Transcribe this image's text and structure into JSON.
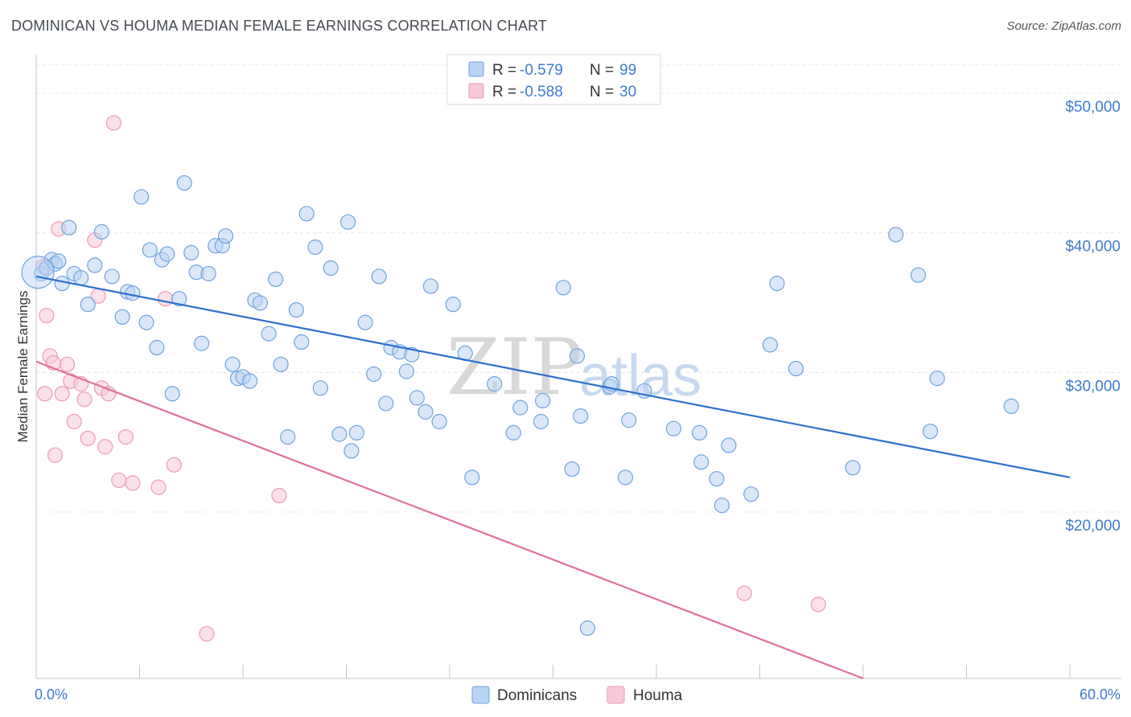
{
  "title": "DOMINICAN VS HOUMA MEDIAN FEMALE EARNINGS CORRELATION CHART",
  "source": "Source: ZipAtlas.com",
  "watermark": {
    "zip": "ZIP",
    "atlas": "atlas"
  },
  "chart_data": {
    "type": "scatter",
    "title": "DOMINICAN VS HOUMA MEDIAN FEMALE EARNINGS CORRELATION CHART",
    "xlabel": "",
    "ylabel": "Median Female Earnings",
    "xlim": [
      0,
      60
    ],
    "ylim": [
      9000,
      53000
    ],
    "x_tick_labels": {
      "min": "0.0%",
      "max": "60.0%"
    },
    "y_ticks": [
      20000,
      30000,
      40000,
      50000
    ],
    "y_tick_labels": [
      "$20,000",
      "$30,000",
      "$40,000",
      "$50,000"
    ],
    "grid": true,
    "legend_position": "top-center",
    "legend": [
      {
        "r_label": "R =",
        "r_value": "-0.579",
        "n_label": "N =",
        "n_value": "99"
      },
      {
        "r_label": "R =",
        "r_value": "-0.588",
        "n_label": "N =",
        "n_value": "30"
      }
    ],
    "series": [
      {
        "name": "Dominicans",
        "color": "#6fa3e0",
        "fill": "#b9d3f3",
        "trend": {
          "x": [
            0,
            60
          ],
          "y": [
            37800,
            23400
          ],
          "color": "#2b6fd0"
        },
        "points": [
          [
            0.3,
            38000
          ],
          [
            0.6,
            38400
          ],
          [
            0.9,
            39000
          ],
          [
            1.1,
            38700
          ],
          [
            1.5,
            37300
          ],
          [
            1.9,
            41300
          ],
          [
            2.2,
            38000
          ],
          [
            2.6,
            37700
          ],
          [
            3.0,
            35800
          ],
          [
            3.4,
            38600
          ],
          [
            3.8,
            41000
          ],
          [
            4.4,
            37800
          ],
          [
            5.0,
            34900
          ],
          [
            5.3,
            36700
          ],
          [
            5.6,
            36600
          ],
          [
            6.1,
            43500
          ],
          [
            6.4,
            34500
          ],
          [
            6.6,
            39700
          ],
          [
            7.0,
            32700
          ],
          [
            7.3,
            39000
          ],
          [
            7.6,
            39400
          ],
          [
            7.9,
            29400
          ],
          [
            8.3,
            36200
          ],
          [
            8.6,
            44500
          ],
          [
            9.0,
            39500
          ],
          [
            9.3,
            38100
          ],
          [
            9.6,
            33000
          ],
          [
            10.0,
            38000
          ],
          [
            10.4,
            40000
          ],
          [
            10.8,
            40000
          ],
          [
            11.0,
            40700
          ],
          [
            11.4,
            31500
          ],
          [
            11.7,
            30500
          ],
          [
            12.0,
            30600
          ],
          [
            12.4,
            30300
          ],
          [
            12.7,
            36100
          ],
          [
            13.0,
            35900
          ],
          [
            13.5,
            33700
          ],
          [
            13.9,
            37600
          ],
          [
            14.2,
            31500
          ],
          [
            14.6,
            26300
          ],
          [
            15.1,
            35400
          ],
          [
            15.4,
            33100
          ],
          [
            15.7,
            42300
          ],
          [
            16.2,
            39900
          ],
          [
            16.5,
            29800
          ],
          [
            17.1,
            38400
          ],
          [
            17.6,
            26500
          ],
          [
            18.1,
            41700
          ],
          [
            18.3,
            25300
          ],
          [
            18.6,
            26600
          ],
          [
            19.1,
            34500
          ],
          [
            19.6,
            30800
          ],
          [
            19.9,
            37800
          ],
          [
            20.3,
            28700
          ],
          [
            20.6,
            32700
          ],
          [
            21.1,
            32400
          ],
          [
            21.5,
            31000
          ],
          [
            21.8,
            32200
          ],
          [
            22.1,
            29100
          ],
          [
            22.6,
            28100
          ],
          [
            22.9,
            37100
          ],
          [
            23.4,
            27400
          ],
          [
            24.2,
            35800
          ],
          [
            24.9,
            32300
          ],
          [
            25.3,
            23400
          ],
          [
            26.6,
            30100
          ],
          [
            27.7,
            26600
          ],
          [
            28.1,
            28400
          ],
          [
            29.3,
            27400
          ],
          [
            29.4,
            28900
          ],
          [
            30.6,
            37000
          ],
          [
            31.1,
            24000
          ],
          [
            31.4,
            32100
          ],
          [
            31.6,
            27800
          ],
          [
            32.0,
            12600
          ],
          [
            33.3,
            29900
          ],
          [
            33.4,
            30100
          ],
          [
            34.2,
            23400
          ],
          [
            34.4,
            27500
          ],
          [
            35.3,
            29600
          ],
          [
            37.0,
            26900
          ],
          [
            38.5,
            26600
          ],
          [
            38.6,
            24500
          ],
          [
            39.5,
            23300
          ],
          [
            39.8,
            21400
          ],
          [
            40.2,
            25700
          ],
          [
            41.5,
            22200
          ],
          [
            42.6,
            32900
          ],
          [
            43.0,
            37300
          ],
          [
            44.1,
            31200
          ],
          [
            47.4,
            24100
          ],
          [
            49.9,
            40800
          ],
          [
            51.2,
            37900
          ],
          [
            51.9,
            26700
          ],
          [
            52.3,
            30500
          ],
          [
            56.6,
            28500
          ],
          [
            0.1,
            38100
          ],
          [
            1.3,
            38900
          ]
        ]
      },
      {
        "name": "Houma",
        "color": "#ee9ab4",
        "fill": "#f8c9d7",
        "trend": {
          "x": [
            0,
            48
          ],
          "y": [
            31700,
            9000
          ],
          "color": "#e07098"
        },
        "points": [
          [
            0.4,
            38500
          ],
          [
            0.5,
            29400
          ],
          [
            0.6,
            35000
          ],
          [
            0.8,
            32100
          ],
          [
            1.0,
            31600
          ],
          [
            1.1,
            25000
          ],
          [
            1.3,
            41200
          ],
          [
            1.5,
            29400
          ],
          [
            1.8,
            31500
          ],
          [
            2.0,
            30300
          ],
          [
            2.2,
            27400
          ],
          [
            2.6,
            30100
          ],
          [
            2.8,
            29000
          ],
          [
            3.0,
            26200
          ],
          [
            3.4,
            40400
          ],
          [
            3.6,
            36400
          ],
          [
            3.8,
            29800
          ],
          [
            4.0,
            25600
          ],
          [
            4.2,
            29400
          ],
          [
            4.5,
            48800
          ],
          [
            4.8,
            23200
          ],
          [
            5.2,
            26300
          ],
          [
            5.6,
            23000
          ],
          [
            7.1,
            22700
          ],
          [
            7.5,
            36200
          ],
          [
            8.0,
            24300
          ],
          [
            9.9,
            12200
          ],
          [
            14.1,
            22100
          ],
          [
            41.1,
            15100
          ],
          [
            45.4,
            14300
          ]
        ]
      }
    ]
  }
}
